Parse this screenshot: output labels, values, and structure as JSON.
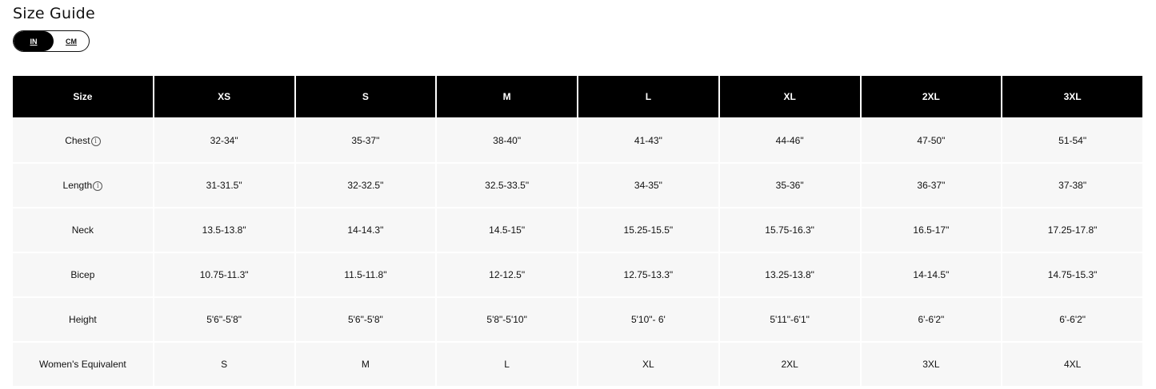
{
  "title": "Size Guide",
  "units": {
    "options": [
      "IN",
      "CM"
    ],
    "selected": "IN"
  },
  "table": {
    "headers": [
      "Size",
      "XS",
      "S",
      "M",
      "L",
      "XL",
      "2XL",
      "3XL"
    ],
    "rows": [
      {
        "label": "Chest",
        "info": true,
        "values": [
          "32-34\"",
          "35-37\"",
          "38-40\"",
          "41-43\"",
          "44-46\"",
          "47-50\"",
          "51-54\""
        ]
      },
      {
        "label": "Length",
        "info": true,
        "values": [
          "31-31.5\"",
          "32-32.5\"",
          "32.5-33.5\"",
          "34-35\"",
          "35-36\"",
          "36-37\"",
          "37-38\""
        ]
      },
      {
        "label": "Neck",
        "info": false,
        "values": [
          "13.5-13.8\"",
          "14-14.3\"",
          "14.5-15\"",
          "15.25-15.5\"",
          "15.75-16.3\"",
          "16.5-17\"",
          "17.25-17.8\""
        ]
      },
      {
        "label": "Bicep",
        "info": false,
        "values": [
          "10.75-11.3\"",
          "11.5-11.8\"",
          "12-12.5\"",
          "12.75-13.3\"",
          "13.25-13.8\"",
          "14-14.5\"",
          "14.75-15.3\""
        ]
      },
      {
        "label": "Height",
        "info": false,
        "values": [
          "5'6\"-5'8\"",
          "5'6\"-5'8\"",
          "5'8\"-5'10\"",
          "5'10\"- 6'",
          "5'11\"-6'1\"",
          "6'-6'2\"",
          "6'-6'2\""
        ]
      },
      {
        "label": "Women's Equivalent",
        "info": false,
        "values": [
          "S",
          "M",
          "L",
          "XL",
          "2XL",
          "3XL",
          "4XL"
        ]
      }
    ]
  }
}
